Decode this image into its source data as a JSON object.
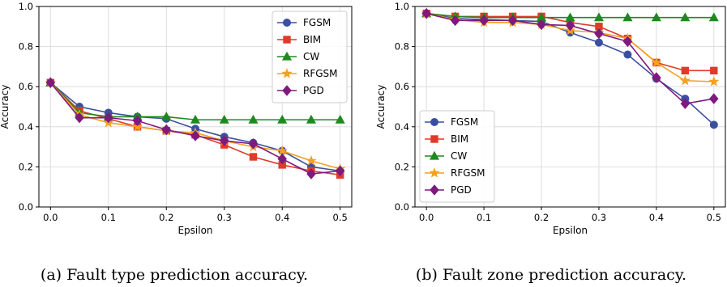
{
  "chart_data": [
    {
      "type": "line",
      "caption": "(a) Fault type prediction accuracy.",
      "xlabel": "Epsilon",
      "ylabel": "Accuracy",
      "xlim": [
        -0.02,
        0.52
      ],
      "ylim": [
        0.0,
        1.0
      ],
      "xticks": [
        "0.0",
        "0.1",
        "0.2",
        "0.3",
        "0.4",
        "0.5"
      ],
      "yticks": [
        "0.0",
        "0.2",
        "0.4",
        "0.6",
        "0.8",
        "1.0"
      ],
      "grid": true,
      "legend_position": "top-right",
      "x": [
        0.0,
        0.05,
        0.1,
        0.15,
        0.2,
        0.25,
        0.3,
        0.35,
        0.4,
        0.45,
        0.5
      ],
      "series": [
        {
          "name": "FGSM",
          "color": "#3b4fa0",
          "marker": "circle",
          "values": [
            0.62,
            0.5,
            0.47,
            0.45,
            0.44,
            0.39,
            0.35,
            0.32,
            0.28,
            0.2,
            0.18
          ]
        },
        {
          "name": "BIM",
          "color": "#e03a2a",
          "marker": "square",
          "values": [
            0.62,
            0.48,
            0.44,
            0.4,
            0.38,
            0.36,
            0.31,
            0.25,
            0.21,
            0.18,
            0.16
          ]
        },
        {
          "name": "CW",
          "color": "#1e8a1e",
          "marker": "triangle",
          "values": [
            0.62,
            0.47,
            0.45,
            0.45,
            0.45,
            0.435,
            0.435,
            0.435,
            0.435,
            0.435,
            0.435
          ]
        },
        {
          "name": "RFGSM",
          "color": "#f5a020",
          "marker": "star",
          "values": [
            0.62,
            0.46,
            0.42,
            0.4,
            0.38,
            0.37,
            0.33,
            0.3,
            0.28,
            0.23,
            0.19
          ]
        },
        {
          "name": "PGD",
          "color": "#7e1a7e",
          "marker": "diamond",
          "values": [
            0.62,
            0.445,
            0.445,
            0.43,
            0.385,
            0.355,
            0.33,
            0.315,
            0.24,
            0.165,
            0.18
          ]
        }
      ]
    },
    {
      "type": "line",
      "caption": "(b) Fault zone prediction accuracy.",
      "xlabel": "Epsilon",
      "ylabel": "Accuracy",
      "xlim": [
        -0.02,
        0.52
      ],
      "ylim": [
        0.0,
        1.0
      ],
      "xticks": [
        "0.0",
        "0.1",
        "0.2",
        "0.3",
        "0.4",
        "0.5"
      ],
      "yticks": [
        "0.0",
        "0.2",
        "0.4",
        "0.6",
        "0.8",
        "1.0"
      ],
      "grid": true,
      "legend_position": "bottom-left",
      "x": [
        0.0,
        0.05,
        0.1,
        0.15,
        0.2,
        0.25,
        0.3,
        0.35,
        0.4,
        0.45,
        0.5
      ],
      "series": [
        {
          "name": "FGSM",
          "color": "#3b4fa0",
          "marker": "circle",
          "values": [
            0.965,
            0.94,
            0.935,
            0.93,
            0.925,
            0.87,
            0.82,
            0.76,
            0.64,
            0.54,
            0.41
          ]
        },
        {
          "name": "BIM",
          "color": "#e03a2a",
          "marker": "square",
          "values": [
            0.965,
            0.95,
            0.95,
            0.95,
            0.95,
            0.92,
            0.9,
            0.84,
            0.72,
            0.68,
            0.68
          ]
        },
        {
          "name": "CW",
          "color": "#1e8a1e",
          "marker": "triangle",
          "values": [
            0.965,
            0.95,
            0.945,
            0.945,
            0.945,
            0.945,
            0.945,
            0.945,
            0.945,
            0.945,
            0.945
          ]
        },
        {
          "name": "RFGSM",
          "color": "#f5a020",
          "marker": "star",
          "values": [
            0.965,
            0.935,
            0.92,
            0.92,
            0.91,
            0.88,
            0.87,
            0.84,
            0.72,
            0.63,
            0.625
          ]
        },
        {
          "name": "PGD",
          "color": "#7e1a7e",
          "marker": "diamond",
          "values": [
            0.965,
            0.93,
            0.93,
            0.93,
            0.91,
            0.905,
            0.865,
            0.825,
            0.645,
            0.515,
            0.54
          ]
        }
      ]
    }
  ]
}
